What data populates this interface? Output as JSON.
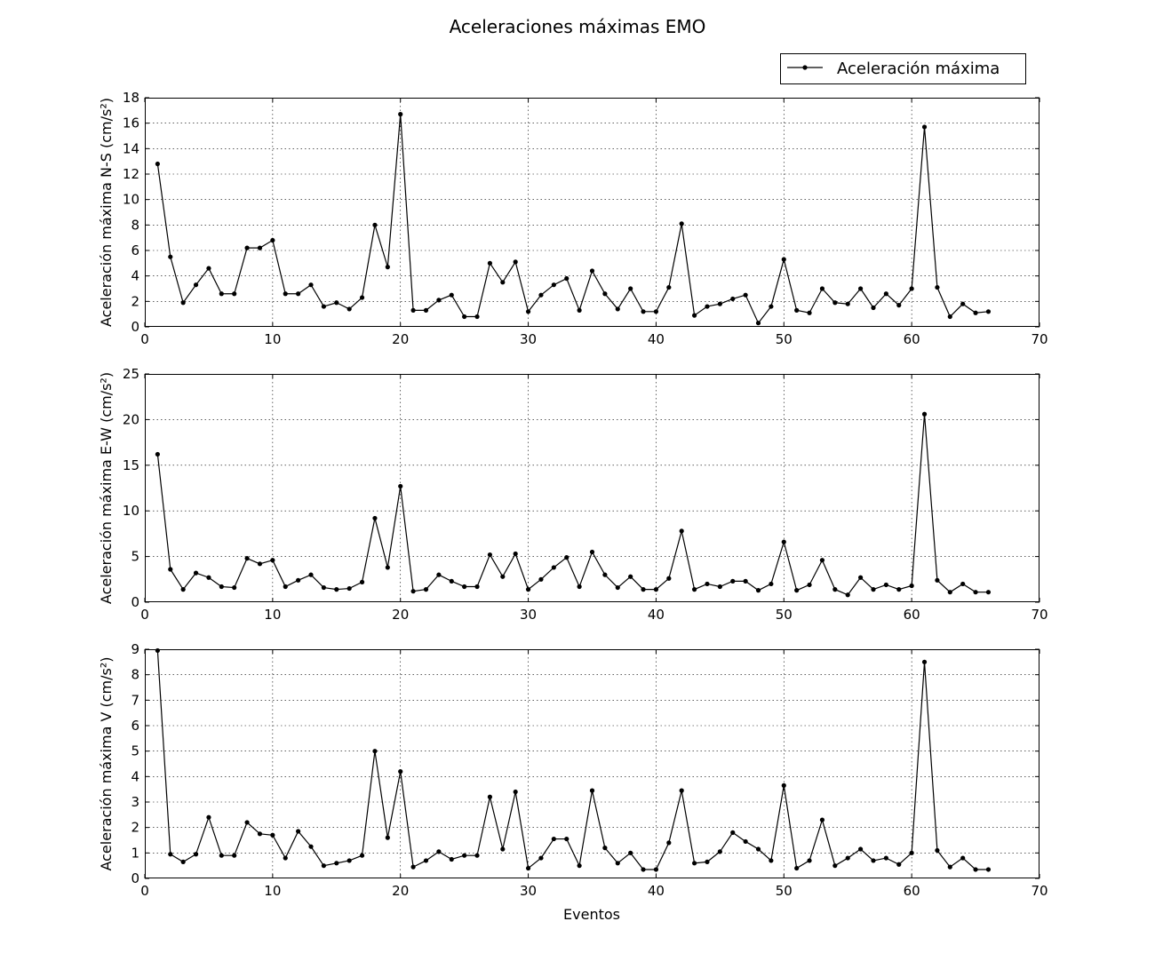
{
  "chart_data": {
    "type": "line",
    "title": "Aceleraciones máximas EMO",
    "legend": {
      "label": "Aceleración máxima",
      "placement": "top-right"
    },
    "xlabel": "Eventos",
    "xlim": [
      0,
      70
    ],
    "x_ticks": [
      0,
      10,
      20,
      30,
      40,
      50,
      60,
      70
    ],
    "grid": true,
    "line_color": "#000000",
    "x": [
      1,
      2,
      3,
      4,
      5,
      6,
      7,
      8,
      9,
      10,
      11,
      12,
      13,
      14,
      15,
      16,
      17,
      18,
      19,
      20,
      21,
      22,
      23,
      24,
      25,
      26,
      27,
      28,
      29,
      30,
      31,
      32,
      33,
      34,
      35,
      36,
      37,
      38,
      39,
      40,
      41,
      42,
      43,
      44,
      45,
      46,
      47,
      48,
      49,
      50,
      51,
      52,
      53,
      54,
      55,
      56,
      57,
      58,
      59,
      60,
      61,
      62,
      63,
      64,
      65,
      66
    ],
    "panels": [
      {
        "ylabel": "Aceleración máxima N-S (cm/s²)",
        "ylim": [
          0,
          18
        ],
        "y_ticks": [
          0,
          2,
          4,
          6,
          8,
          10,
          12,
          14,
          16,
          18
        ],
        "values": [
          12.8,
          5.5,
          1.9,
          3.3,
          4.6,
          2.6,
          2.6,
          6.2,
          6.2,
          6.8,
          2.6,
          2.6,
          3.3,
          1.6,
          1.9,
          1.4,
          2.3,
          8.0,
          4.7,
          16.7,
          1.3,
          1.3,
          2.1,
          2.5,
          0.8,
          0.8,
          5.0,
          3.5,
          5.1,
          1.2,
          2.5,
          3.3,
          3.8,
          1.3,
          4.4,
          2.6,
          1.4,
          3.0,
          1.2,
          1.2,
          3.1,
          8.1,
          0.9,
          1.6,
          1.8,
          2.2,
          2.5,
          0.3,
          1.6,
          5.3,
          1.3,
          1.1,
          3.0,
          1.9,
          1.8,
          3.0,
          1.5,
          2.6,
          1.7,
          3.0,
          15.7,
          3.1,
          0.8,
          1.8,
          1.1,
          1.2
        ]
      },
      {
        "ylabel": "Aceleración máxima E-W (cm/s²)",
        "ylim": [
          0,
          25
        ],
        "y_ticks": [
          0,
          5,
          10,
          15,
          20,
          25
        ],
        "values": [
          16.2,
          3.6,
          1.4,
          3.2,
          2.7,
          1.7,
          1.6,
          4.8,
          4.2,
          4.6,
          1.7,
          2.4,
          3.0,
          1.6,
          1.4,
          1.5,
          2.2,
          9.2,
          3.8,
          12.7,
          1.2,
          1.4,
          3.0,
          2.3,
          1.7,
          1.7,
          5.2,
          2.8,
          5.3,
          1.4,
          2.5,
          3.8,
          4.9,
          1.7,
          5.5,
          3.0,
          1.6,
          2.8,
          1.4,
          1.4,
          2.6,
          7.8,
          1.4,
          2.0,
          1.7,
          2.3,
          2.3,
          1.3,
          2.0,
          6.6,
          1.3,
          1.9,
          4.6,
          1.4,
          0.8,
          2.7,
          1.4,
          1.9,
          1.4,
          1.8,
          20.6,
          2.4,
          1.1,
          2.0,
          1.1,
          1.1
        ]
      },
      {
        "ylabel": "Aceleración máxima V (cm/s²)",
        "ylim": [
          0,
          9
        ],
        "y_ticks": [
          0,
          1,
          2,
          3,
          4,
          5,
          6,
          7,
          8,
          9
        ],
        "values": [
          8.95,
          0.95,
          0.65,
          0.95,
          2.4,
          0.9,
          0.9,
          2.2,
          1.75,
          1.7,
          0.8,
          1.85,
          1.25,
          0.5,
          0.6,
          0.7,
          0.9,
          5.0,
          1.6,
          4.2,
          0.45,
          0.7,
          1.05,
          0.75,
          0.9,
          0.9,
          3.2,
          1.15,
          3.4,
          0.4,
          0.8,
          1.55,
          1.55,
          0.5,
          3.45,
          1.2,
          0.6,
          1.0,
          0.35,
          0.35,
          1.4,
          3.45,
          0.6,
          0.65,
          1.05,
          1.8,
          1.45,
          1.15,
          0.7,
          3.65,
          0.4,
          0.7,
          2.3,
          0.5,
          0.8,
          1.15,
          0.7,
          0.8,
          0.55,
          1.0,
          8.5,
          1.1,
          0.45,
          0.8,
          0.35,
          0.35
        ]
      }
    ]
  }
}
